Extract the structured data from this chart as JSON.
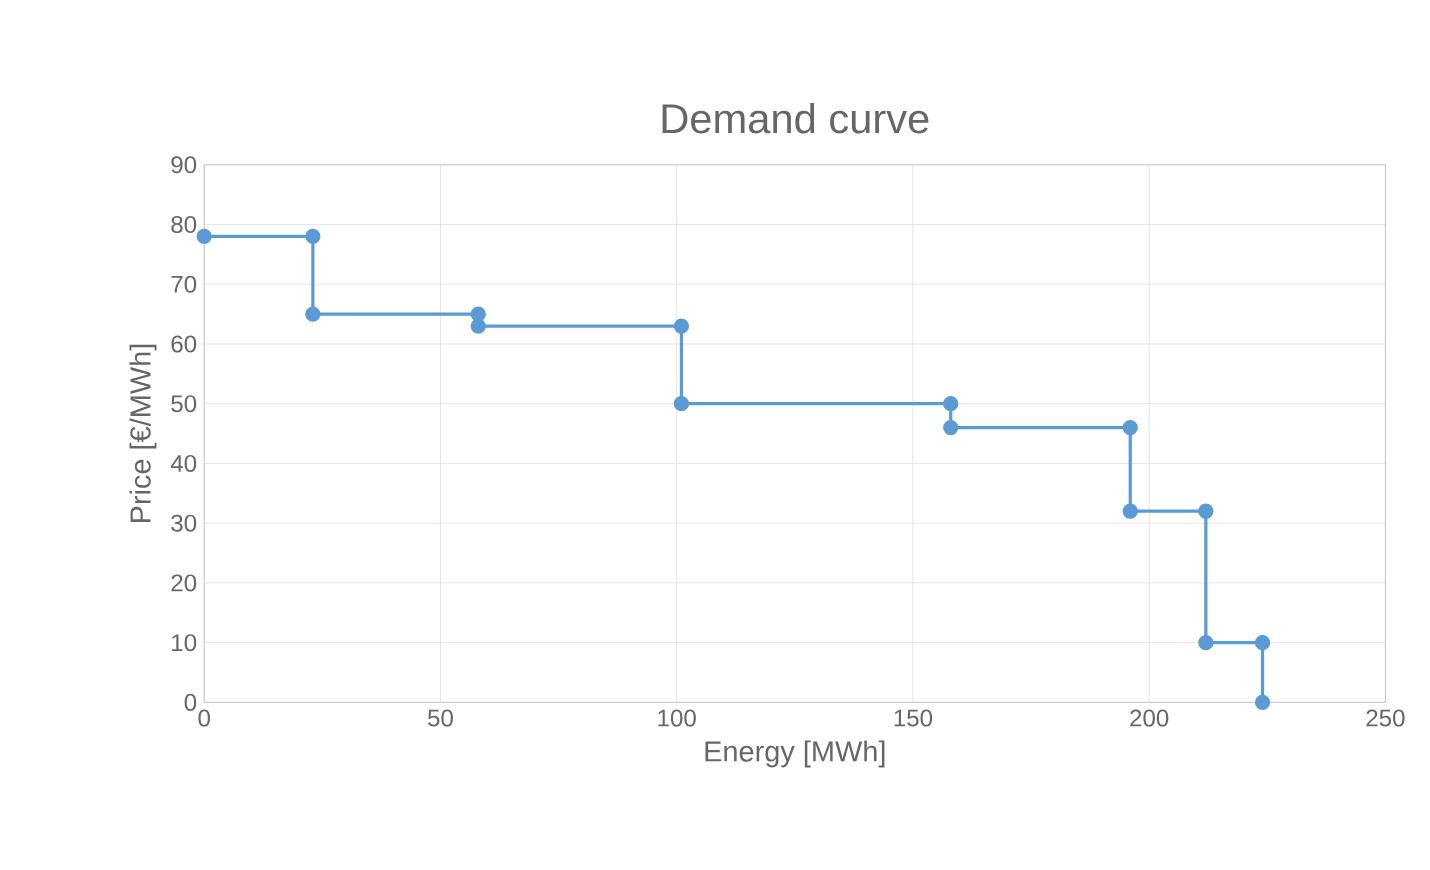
{
  "chart_data": {
    "type": "line",
    "title": "Demand curve",
    "xlabel": "Energy [MWh]",
    "ylabel": "Price [€/MWh]",
    "series": [
      {
        "color": "#5b9bd5",
        "x": [
          0,
          23,
          23,
          58,
          58,
          101,
          101,
          158,
          158,
          196,
          196,
          212,
          212,
          224,
          224
        ],
        "values": [
          78,
          78,
          65,
          65,
          63,
          63,
          50,
          50,
          46,
          46,
          32,
          32,
          10,
          10,
          0
        ]
      }
    ],
    "xlim": [
      0,
      250
    ],
    "xticks": [
      0,
      50,
      100,
      150,
      200,
      250
    ],
    "ylim": [
      0,
      90
    ],
    "yticks": [
      0,
      10,
      20,
      30,
      40,
      50,
      60,
      70,
      80,
      90
    ],
    "grid": true,
    "marker": "circle",
    "line_style": "solid"
  }
}
